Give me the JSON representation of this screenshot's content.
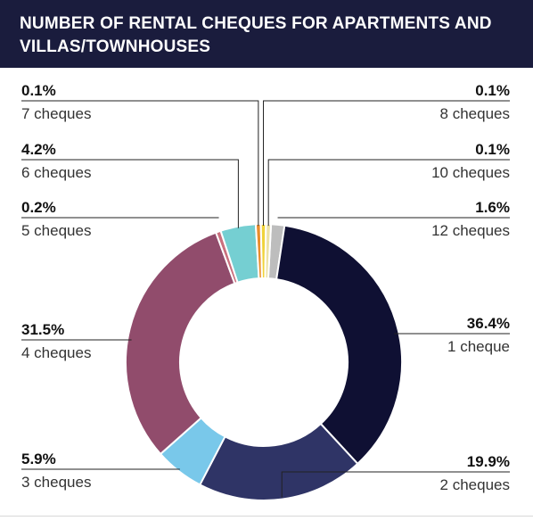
{
  "header": {
    "title_line1": "NUMBER OF RENTAL CHEQUES FOR APARTMENTS AND",
    "title_line2": "VILLAS/TOWNHOUSES"
  },
  "chart_data": {
    "type": "pie",
    "style": "donut",
    "title": "NUMBER OF RENTAL CHEQUES FOR APARTMENTS AND VILLAS/TOWNHOUSES",
    "slices": [
      {
        "category": "1 cheque",
        "percent_label": "36.4%",
        "value": 36.4,
        "color": "#0f1033"
      },
      {
        "category": "2 cheques",
        "percent_label": "19.9%",
        "value": 19.9,
        "color": "#2f3466"
      },
      {
        "category": "3 cheques",
        "percent_label": "5.9%",
        "value": 5.9,
        "color": "#79c8ea"
      },
      {
        "category": "4 cheques",
        "percent_label": "31.5%",
        "value": 31.5,
        "color": "#914c6c"
      },
      {
        "category": "5 cheques",
        "percent_label": "0.2%",
        "value": 0.2,
        "color": "#c9707e"
      },
      {
        "category": "6 cheques",
        "percent_label": "4.2%",
        "value": 4.2,
        "color": "#75cfd2"
      },
      {
        "category": "7 cheques",
        "percent_label": "0.1%",
        "value": 0.1,
        "color": "#e98d2c"
      },
      {
        "category": "8 cheques",
        "percent_label": "0.1%",
        "value": 0.1,
        "color": "#f0d33a"
      },
      {
        "category": "10 cheques",
        "percent_label": "0.1%",
        "value": 0.1,
        "color": "#ece2a6"
      },
      {
        "category": "12 cheques",
        "percent_label": "1.6%",
        "value": 1.6,
        "color": "#bdbdbd"
      }
    ]
  }
}
